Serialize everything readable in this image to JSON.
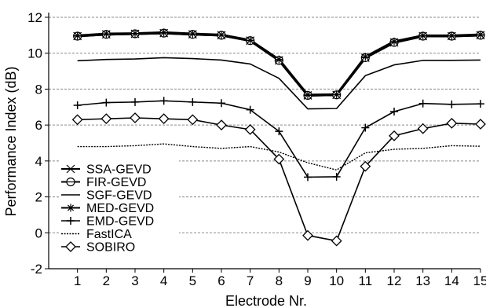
{
  "chart_data": {
    "type": "line",
    "title": "",
    "xlabel": "Electrode Nr.",
    "ylabel": "Performance Index (dB)",
    "xlim": [
      0,
      15
    ],
    "ylim": [
      -2,
      12
    ],
    "x": [
      1,
      2,
      3,
      4,
      5,
      6,
      7,
      8,
      9,
      10,
      11,
      12,
      13,
      14,
      15
    ],
    "x_ticks": [
      "1",
      "2",
      "3",
      "4",
      "5",
      "6",
      "7",
      "8",
      "9",
      "10",
      "11",
      "12",
      "13",
      "14",
      "15"
    ],
    "y_ticks": [
      "-2",
      "0",
      "2",
      "4",
      "6",
      "8",
      "10",
      "12"
    ],
    "grid": "horizontal dashed",
    "legend_position": "lower-left",
    "series": [
      {
        "name": "SSA-GEVD",
        "marker": "x",
        "values": [
          10.95,
          11.05,
          11.08,
          11.12,
          11.05,
          11.0,
          10.7,
          9.6,
          7.65,
          7.68,
          9.75,
          10.6,
          10.95,
          10.95,
          11.0
        ]
      },
      {
        "name": "FIR-GEVD",
        "marker": "circle-bar",
        "values": [
          10.95,
          11.05,
          11.08,
          11.12,
          11.05,
          11.0,
          10.7,
          9.6,
          7.65,
          7.68,
          9.75,
          10.6,
          10.95,
          10.95,
          11.0
        ]
      },
      {
        "name": "SGF-GEVD",
        "marker": "none",
        "values": [
          9.58,
          9.65,
          9.68,
          9.75,
          9.7,
          9.62,
          9.4,
          8.6,
          6.9,
          6.92,
          8.75,
          9.35,
          9.6,
          9.6,
          9.62
        ]
      },
      {
        "name": "MED-GEVD",
        "marker": "asterisk",
        "values": [
          10.98,
          11.08,
          11.1,
          11.15,
          11.08,
          11.02,
          10.72,
          9.65,
          7.68,
          7.7,
          9.8,
          10.65,
          10.98,
          10.98,
          11.03
        ]
      },
      {
        "name": "EMD-GEVD",
        "marker": "plus",
        "values": [
          7.1,
          7.25,
          7.28,
          7.35,
          7.28,
          7.22,
          6.85,
          5.65,
          3.1,
          3.12,
          5.85,
          6.75,
          7.2,
          7.15,
          7.18
        ]
      },
      {
        "name": "FastICA",
        "marker": "dotted",
        "values": [
          4.8,
          4.8,
          4.85,
          4.95,
          4.8,
          4.7,
          4.8,
          4.5,
          3.9,
          3.5,
          4.45,
          4.65,
          4.7,
          4.85,
          4.82
        ]
      },
      {
        "name": "SOBIRO",
        "marker": "diamond",
        "values": [
          6.3,
          6.35,
          6.4,
          6.35,
          6.3,
          6.0,
          5.75,
          4.1,
          -0.15,
          -0.45,
          3.7,
          5.4,
          5.8,
          6.1,
          6.05
        ]
      }
    ]
  }
}
